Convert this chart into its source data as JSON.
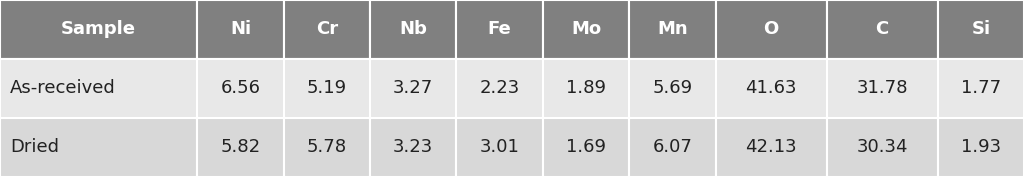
{
  "columns": [
    "Sample",
    "Ni",
    "Cr",
    "Nb",
    "Fe",
    "Mo",
    "Mn",
    "O",
    "C",
    "Si"
  ],
  "rows": [
    [
      "As-received",
      "6.56",
      "5.19",
      "3.27",
      "2.23",
      "1.89",
      "5.69",
      "41.63",
      "31.78",
      "1.77"
    ],
    [
      "Dried",
      "5.82",
      "5.78",
      "3.23",
      "3.01",
      "1.69",
      "6.07",
      "42.13",
      "30.34",
      "1.93"
    ]
  ],
  "header_bg": "#808080",
  "header_text_color": "#ffffff",
  "row_bg_odd": "#e8e8e8",
  "row_bg_even": "#d8d8d8",
  "border_color": "#ffffff",
  "text_color": "#222222",
  "header_fontsize": 13,
  "cell_fontsize": 13,
  "fig_bg": "#ffffff",
  "col_widths": [
    1.6,
    0.7,
    0.7,
    0.7,
    0.7,
    0.7,
    0.7,
    0.9,
    0.9,
    0.7
  ]
}
